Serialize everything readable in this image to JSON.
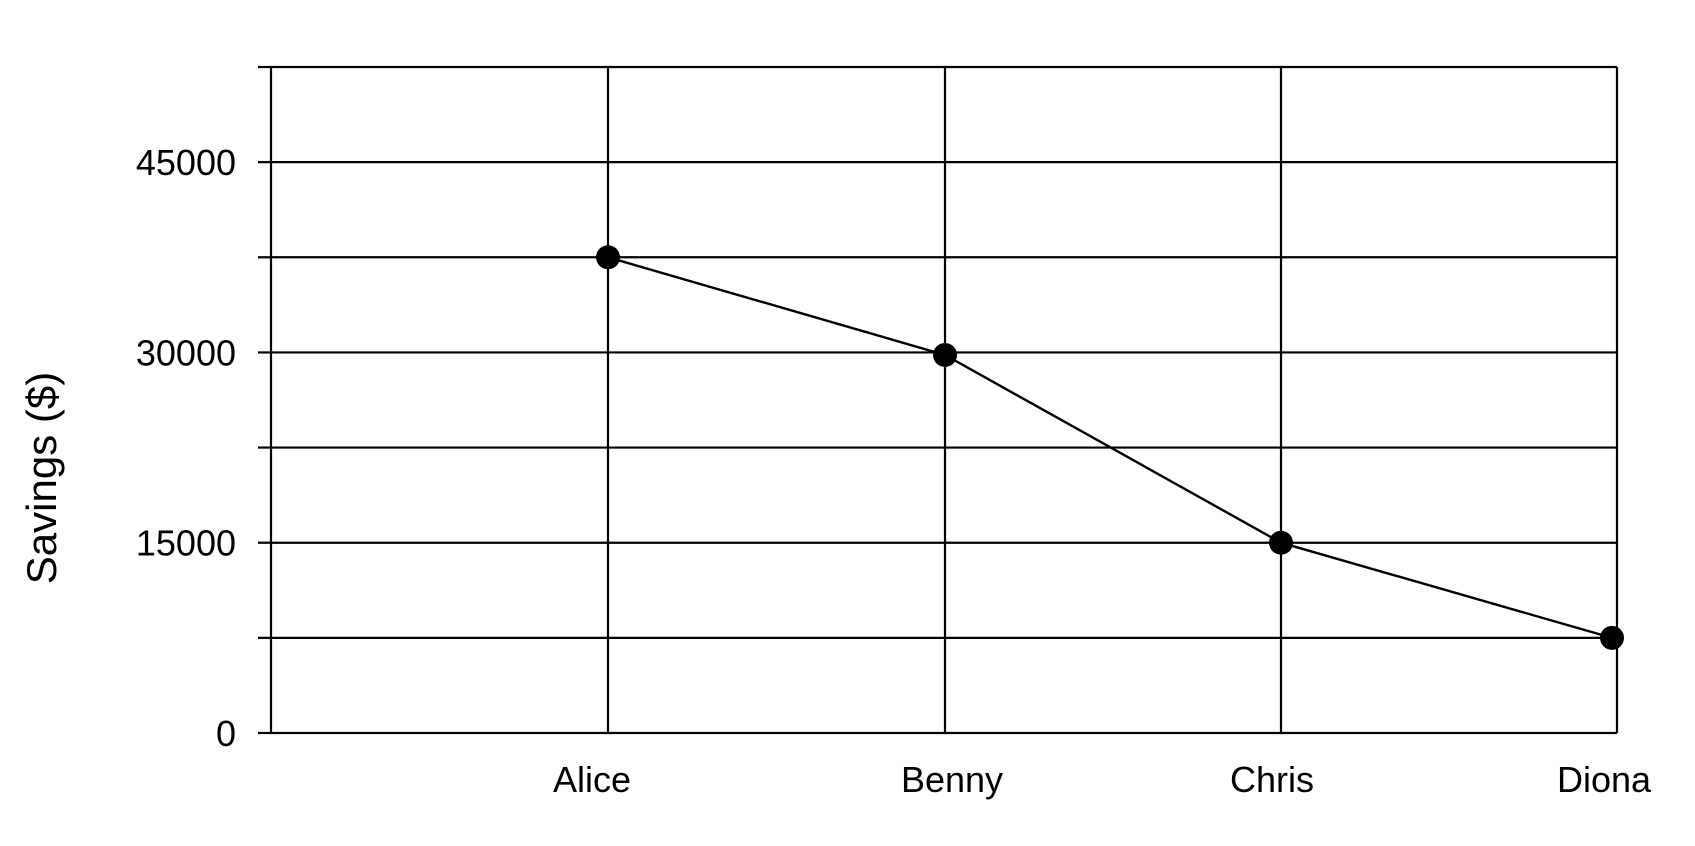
{
  "chart_data": {
    "type": "line",
    "title": "",
    "xlabel": "",
    "ylabel": "Savings ($)",
    "categories": [
      "Alice",
      "Benny",
      "Chris",
      "Diona"
    ],
    "series": [
      {
        "values": [
          37500,
          29800,
          15000,
          7500
        ]
      }
    ],
    "ylim": [
      0,
      52500
    ],
    "yticks": [
      0,
      15000,
      30000,
      45000
    ],
    "ygrid_step": 7500,
    "grid": true,
    "colors": {
      "line": "#000000",
      "marker": "#000000",
      "grid": "#000000"
    }
  }
}
